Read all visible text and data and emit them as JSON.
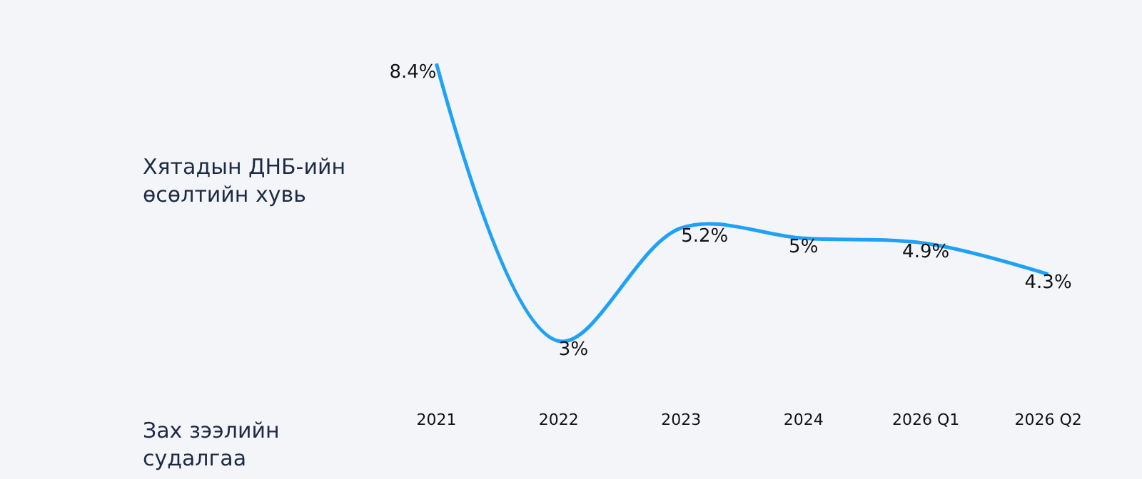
{
  "chart_data": {
    "type": "line",
    "title": "Хятадын ДНБ-ийн өсөлтийн хувь",
    "annotations": [
      "Зах зээлийн судалгаа"
    ],
    "categories": [
      "2021",
      "2022",
      "2023",
      "2024",
      "2026 Q1",
      "2026 Q2"
    ],
    "values": [
      8.4,
      3,
      5.2,
      5,
      4.9,
      4.3
    ],
    "value_labels": [
      "8.4%",
      "3%",
      "5.2%",
      "5%",
      "4.9%",
      "4.3%"
    ],
    "color": "#1fa2f5",
    "line_style": "solid",
    "grid": false,
    "legend": false
  }
}
